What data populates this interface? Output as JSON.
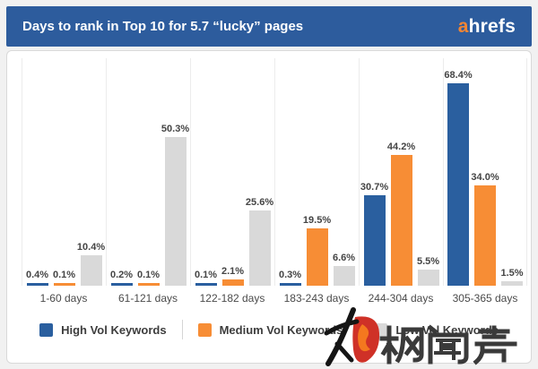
{
  "header": {
    "title": "Days to rank in Top 10 for 5.7 “lucky” pages",
    "logo_accent": "a",
    "logo_rest": "hrefs"
  },
  "chart_data": {
    "type": "bar",
    "title": "Days to rank in Top 10 for 5.7 “lucky” pages",
    "categories": [
      "1-60 days",
      "61-121 days",
      "122-182 days",
      "183-243 days",
      "244-304 days",
      "305-365 days"
    ],
    "series": [
      {
        "name": "High Vol Keywords",
        "color": "#2a5f9f",
        "values": [
          0.4,
          0.2,
          0.1,
          0.3,
          30.7,
          68.4
        ]
      },
      {
        "name": "Medium Vol Keywords",
        "color": "#f78d35",
        "values": [
          0.1,
          0.1,
          2.1,
          19.5,
          44.2,
          34.0
        ]
      },
      {
        "name": "Low Vol Keywords",
        "color": "#d9d9d9",
        "values": [
          10.4,
          50.3,
          25.6,
          6.6,
          5.5,
          1.5
        ]
      }
    ],
    "value_label_format": "{value}%",
    "xlabel": "",
    "ylabel": "",
    "ylim": [
      0,
      77
    ],
    "gridlines": "vertical group separators only",
    "legend_position": "bottom center"
  },
  "watermark": {
    "text": "枫闻声",
    "text_color": "#3a3a3a",
    "accent_red": "#cf3127",
    "accent_orange": "#f4781f"
  }
}
